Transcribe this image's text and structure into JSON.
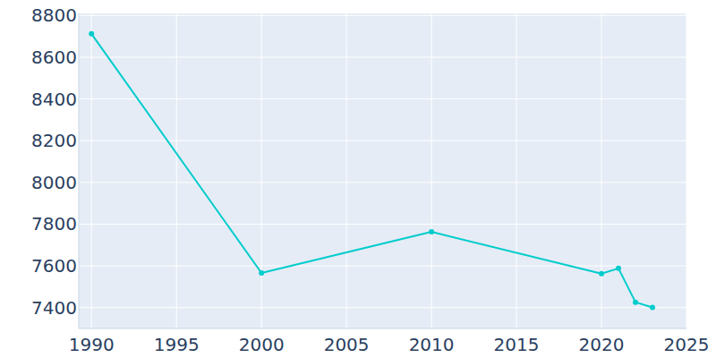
{
  "chart_data": {
    "type": "line",
    "x": [
      1990,
      2000,
      2010,
      2020,
      2021,
      2022,
      2023
    ],
    "values": [
      8712,
      7566,
      7763,
      7563,
      7588,
      7426,
      7401
    ],
    "color": "#00cccc",
    "marker": "circle",
    "xlim": [
      1989.25,
      2025
    ],
    "xticks": [
      1990,
      1995,
      2000,
      2005,
      2010,
      2015,
      2020,
      2025
    ],
    "ylim": [
      7300,
      8810
    ],
    "yticks": [
      7400,
      7600,
      7800,
      8000,
      8200,
      8400,
      8600,
      8800
    ],
    "grid": true
  }
}
